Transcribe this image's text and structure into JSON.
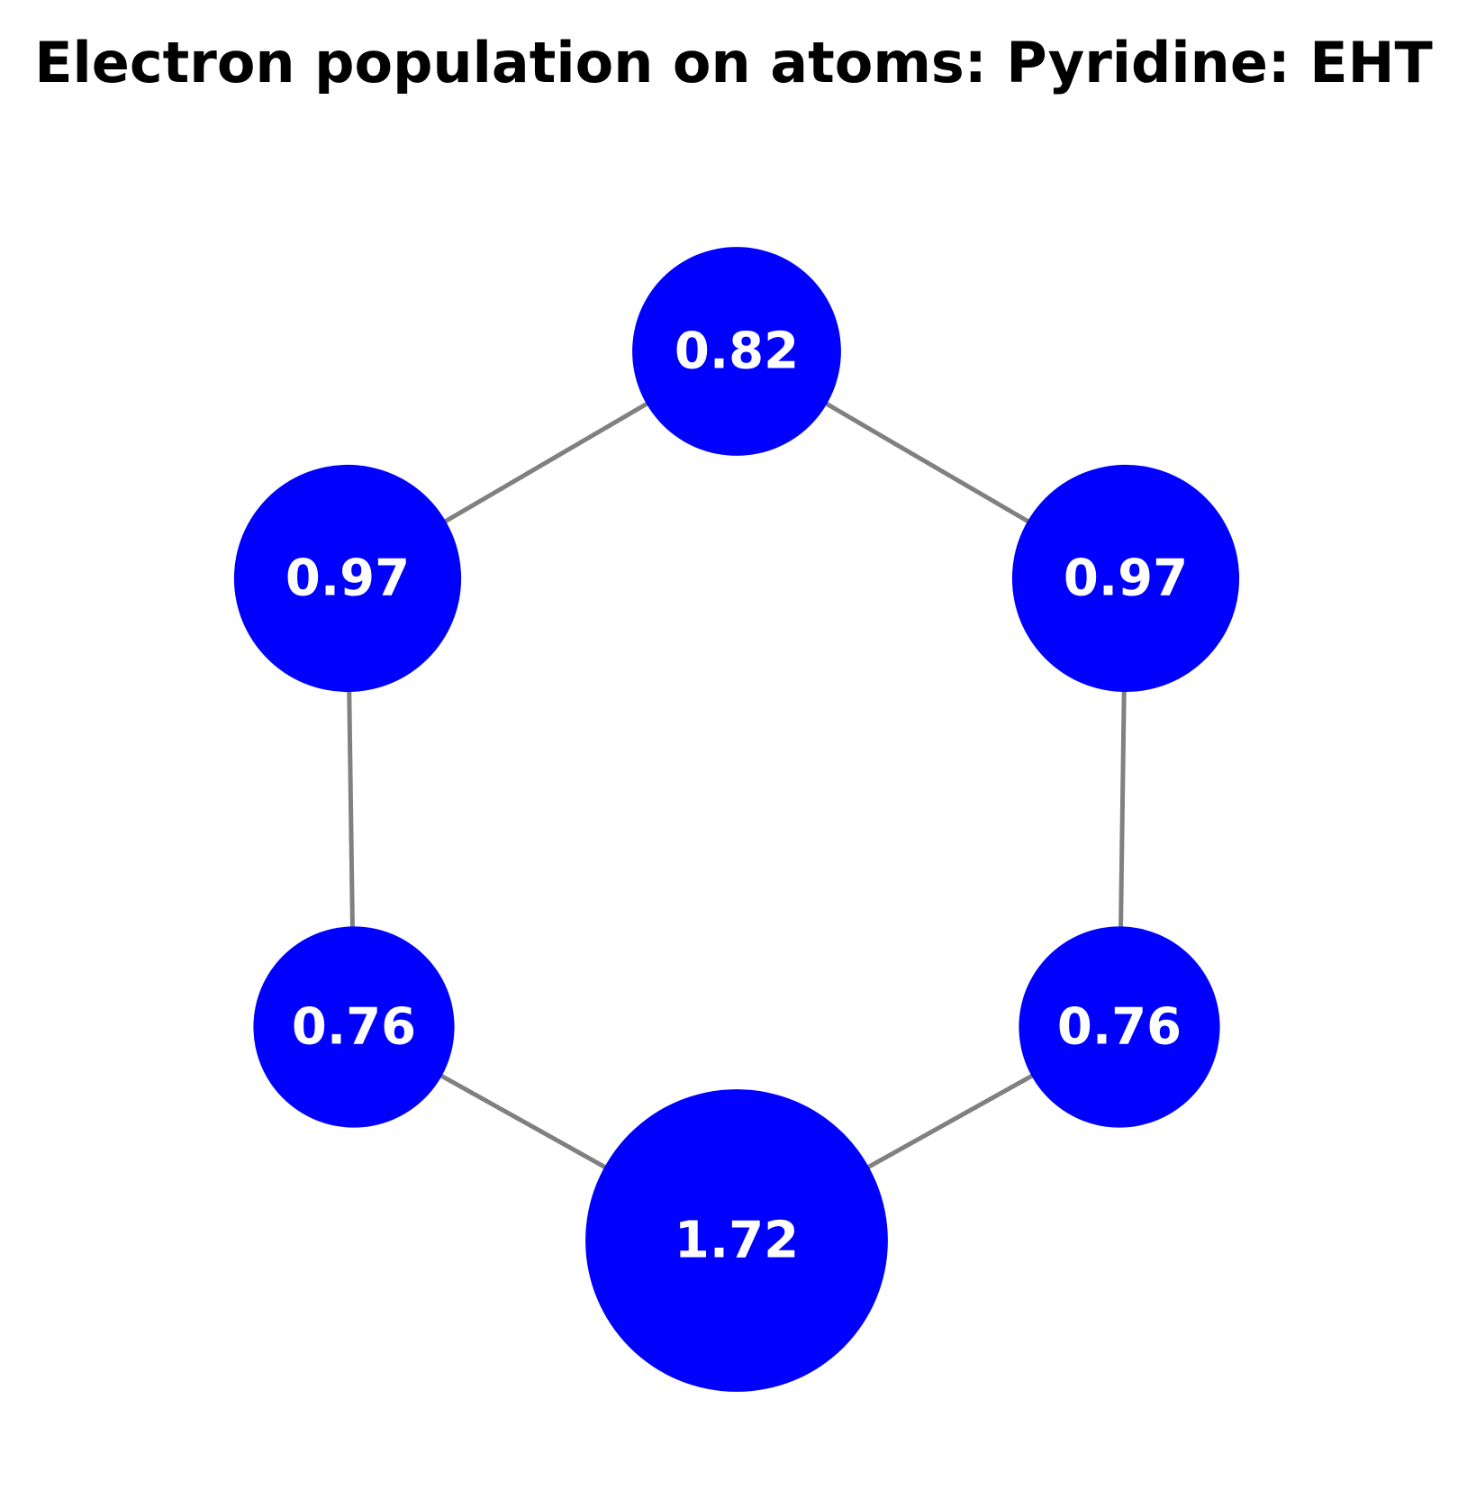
{
  "title": "Electron population on atoms: Pyridine: EHT",
  "colors": {
    "node_fill": "#0000ff",
    "edge_stroke": "#808080",
    "label_text": "#ffffff"
  },
  "atoms": [
    {
      "id": "top",
      "label": "0.82",
      "population": 0.82
    },
    {
      "id": "upper-right",
      "label": "0.97",
      "population": 0.97
    },
    {
      "id": "lower-right",
      "label": "0.76",
      "population": 0.76
    },
    {
      "id": "bottom",
      "label": "1.72",
      "population": 1.72
    },
    {
      "id": "lower-left",
      "label": "0.76",
      "population": 0.76
    },
    {
      "id": "upper-left",
      "label": "0.97",
      "population": 0.97
    }
  ],
  "bonds": [
    [
      "top",
      "upper-right"
    ],
    [
      "upper-right",
      "lower-right"
    ],
    [
      "lower-right",
      "bottom"
    ],
    [
      "bottom",
      "lower-left"
    ],
    [
      "lower-left",
      "upper-left"
    ],
    [
      "upper-left",
      "top"
    ]
  ]
}
